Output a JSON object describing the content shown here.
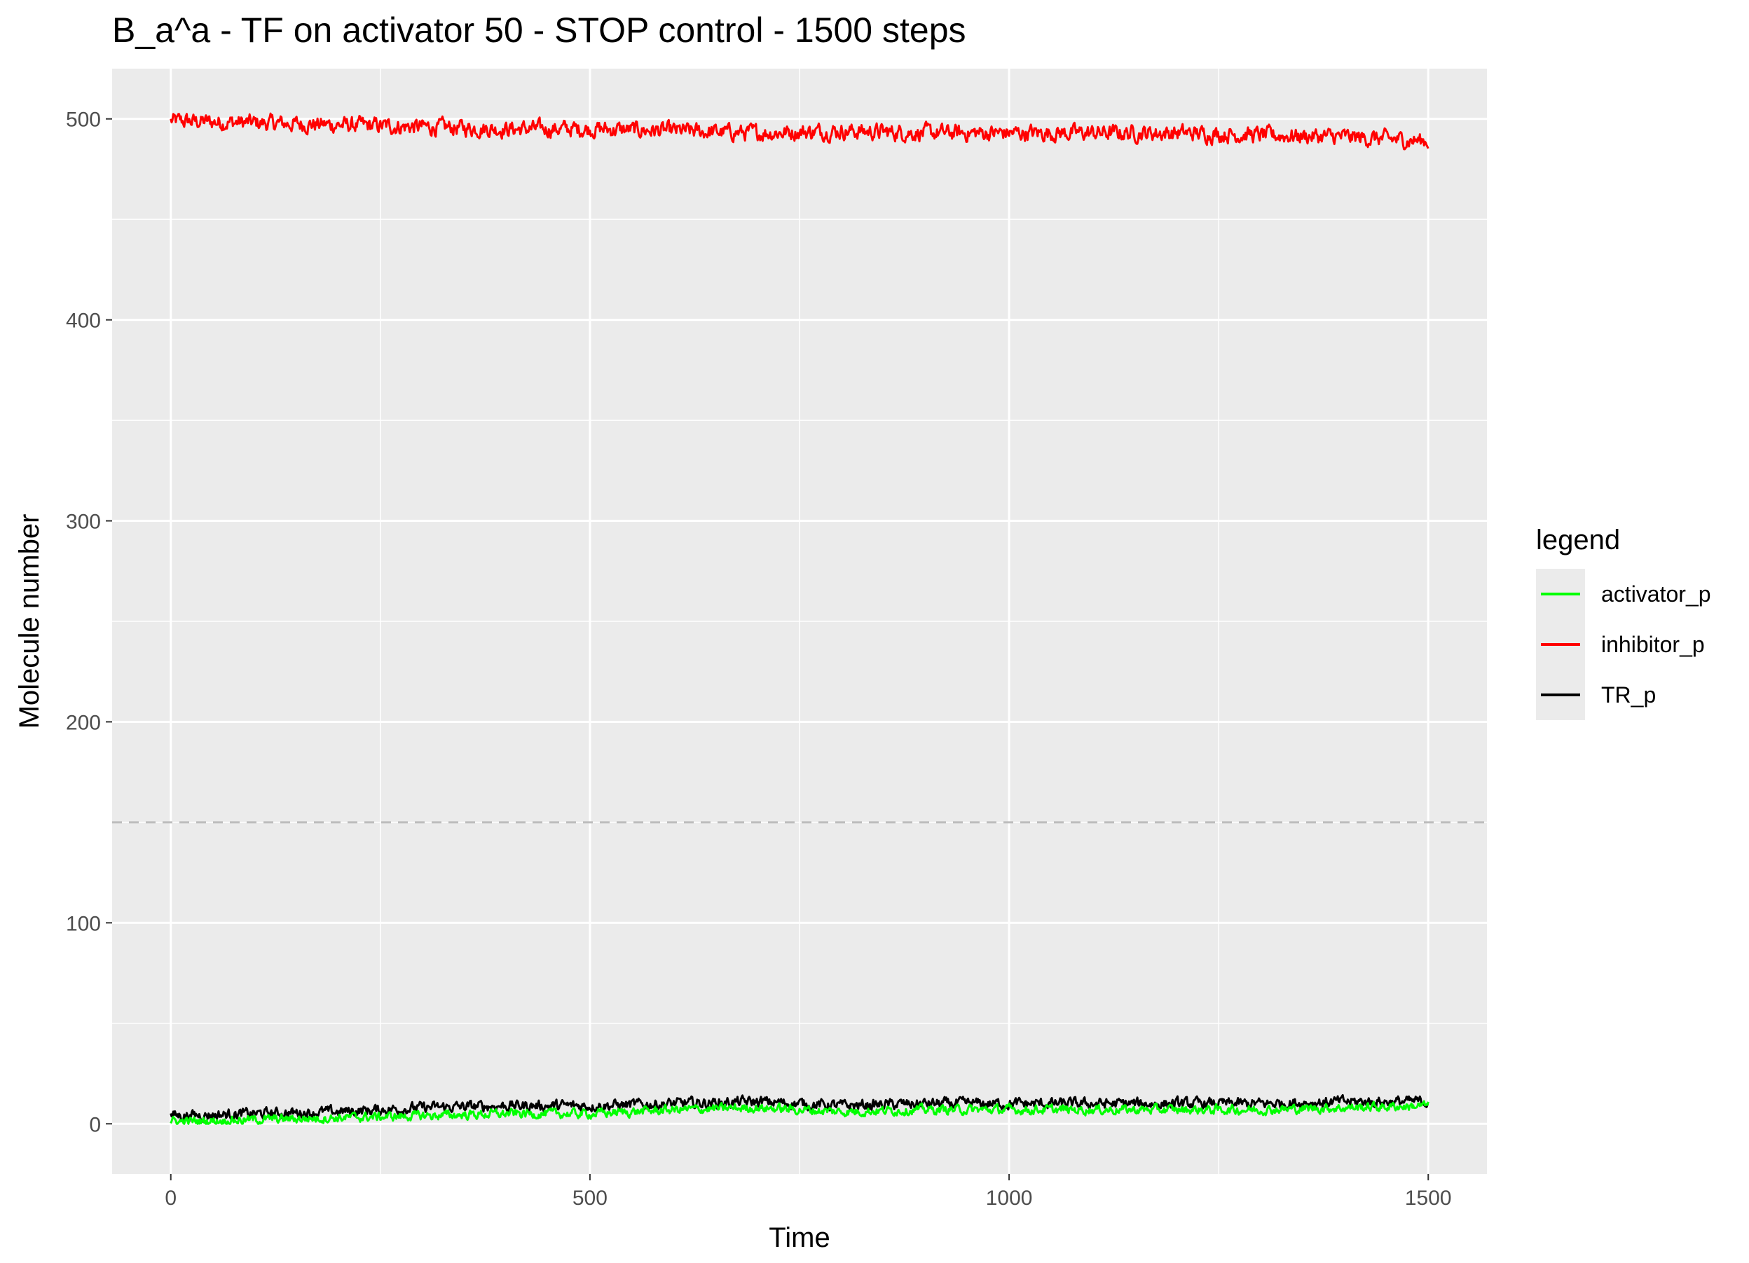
{
  "chart_data": {
    "type": "line",
    "title": "B_a^a - TF on activator 50 - STOP control - 1500 steps",
    "xlabel": "Time",
    "ylabel": "Molecule number",
    "xlim": [
      -70,
      1570
    ],
    "ylim": [
      -25,
      525
    ],
    "x_ticks": [
      0,
      500,
      1000,
      1500
    ],
    "x_tick_labels": [
      "0",
      "500",
      "1000",
      "1500"
    ],
    "y_ticks": [
      0,
      100,
      200,
      300,
      400,
      500
    ],
    "y_tick_labels": [
      "0",
      "100",
      "200",
      "300",
      "400",
      "500"
    ],
    "grid": true,
    "reference_line": {
      "y": 150,
      "style": "dashed",
      "color": "#bdbdbd"
    },
    "legend": {
      "title": "legend",
      "placement": "right",
      "entries": [
        "activator_p",
        "inhibitor_p",
        "TR_p"
      ]
    },
    "series": [
      {
        "name": "inhibitor_p",
        "color": "#ff0000",
        "x": [
          0,
          100,
          200,
          300,
          400,
          500,
          600,
          700,
          800,
          900,
          1000,
          1100,
          1200,
          1300,
          1400,
          1500
        ],
        "mean": [
          499,
          498,
          497,
          496,
          495,
          495,
          494,
          493,
          494,
          493,
          493,
          493,
          493,
          492,
          491,
          489
        ],
        "noise": 4.5
      },
      {
        "name": "TR_p",
        "color": "#000000",
        "x": [
          0,
          100,
          200,
          300,
          400,
          500,
          600,
          700,
          800,
          900,
          1000,
          1100,
          1200,
          1300,
          1400,
          1500
        ],
        "mean": [
          4,
          5,
          6,
          8,
          9,
          9,
          10,
          11,
          9,
          10,
          10,
          10,
          10,
          10,
          11,
          11
        ],
        "noise": 3
      },
      {
        "name": "activator_p",
        "color": "#00ff00",
        "x": [
          0,
          100,
          200,
          300,
          400,
          500,
          600,
          700,
          800,
          900,
          1000,
          1100,
          1200,
          1300,
          1400,
          1500
        ],
        "mean": [
          1,
          2,
          3,
          4,
          5,
          5,
          7,
          8,
          6,
          7,
          7,
          7,
          7,
          7,
          8,
          9
        ],
        "noise": 2.5
      }
    ]
  }
}
